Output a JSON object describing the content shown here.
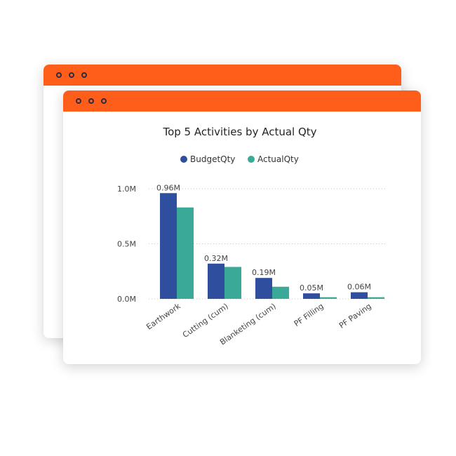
{
  "chart_data": {
    "type": "bar",
    "title": "Top 5 Activities by Actual Qty",
    "categories": [
      "Earthwork",
      "Cutting (cum)",
      "Blanketing (cum)",
      "PF Filling",
      "PF Paving"
    ],
    "series": [
      {
        "name": "BudgetQty",
        "color": "#2f4f9e",
        "values": [
          0.96,
          0.32,
          0.19,
          0.05,
          0.06
        ],
        "labels": [
          "0.96M",
          "0.32M",
          "0.19M",
          "0.05M",
          "0.06M"
        ]
      },
      {
        "name": "ActualQty",
        "color": "#3aa997",
        "values": [
          0.83,
          0.29,
          0.11,
          0.015,
          0.015
        ]
      }
    ],
    "yticks": [
      {
        "value": 0,
        "label": "0.0M"
      },
      {
        "value": 0.5,
        "label": "0.5M"
      },
      {
        "value": 1.0,
        "label": "1.0M"
      }
    ],
    "ylim": [
      0,
      1.0
    ],
    "legend": "top-center",
    "grid": true
  },
  "colors": {
    "titlebar": "#fe5e19",
    "dot_outline": "#2b2d42"
  }
}
